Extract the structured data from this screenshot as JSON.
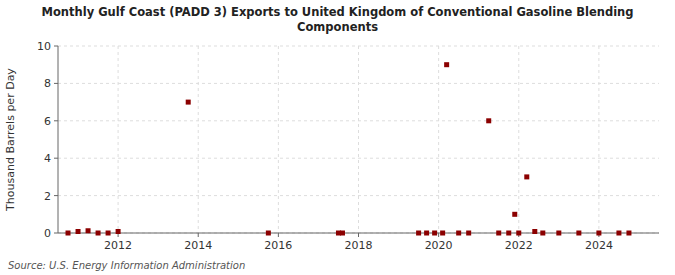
{
  "chart_data": {
    "type": "scatter",
    "title": "Monthly Gulf Coast (PADD 3) Exports to United Kingdom of Conventional Gasoline Blending\nComponents",
    "y_label": "Thousand Barrels per Day",
    "source": "Source: U.S. Energy Information Administration",
    "color": "#8b0000",
    "marker": "square",
    "grid": true,
    "xlim": [
      2010.5,
      2025.5
    ],
    "xticks": [
      2012,
      2014,
      2016,
      2018,
      2020,
      2022,
      2024
    ],
    "ylim": [
      0,
      10
    ],
    "yticks": [
      0,
      2,
      4,
      6,
      8,
      10
    ],
    "x": [
      2010.75,
      2011.0,
      2011.25,
      2011.5,
      2011.75,
      2012.0,
      2013.75,
      2015.75,
      2017.5,
      2017.6,
      2019.5,
      2019.7,
      2019.9,
      2020.1,
      2020.2,
      2020.5,
      2020.75,
      2021.25,
      2021.5,
      2021.75,
      2021.9,
      2022.0,
      2022.2,
      2022.4,
      2022.6,
      2023.0,
      2023.5,
      2024.0,
      2024.5,
      2024.75
    ],
    "values": [
      0.0,
      0.08,
      0.12,
      0.0,
      0.0,
      0.08,
      7.0,
      0.0,
      0.0,
      0.0,
      0.0,
      0.0,
      0.0,
      0.0,
      9.0,
      0.0,
      0.0,
      6.0,
      0.0,
      0.0,
      1.0,
      0.0,
      3.0,
      0.08,
      0.0,
      0.0,
      0.0,
      0.0,
      0.0,
      0.0
    ]
  }
}
